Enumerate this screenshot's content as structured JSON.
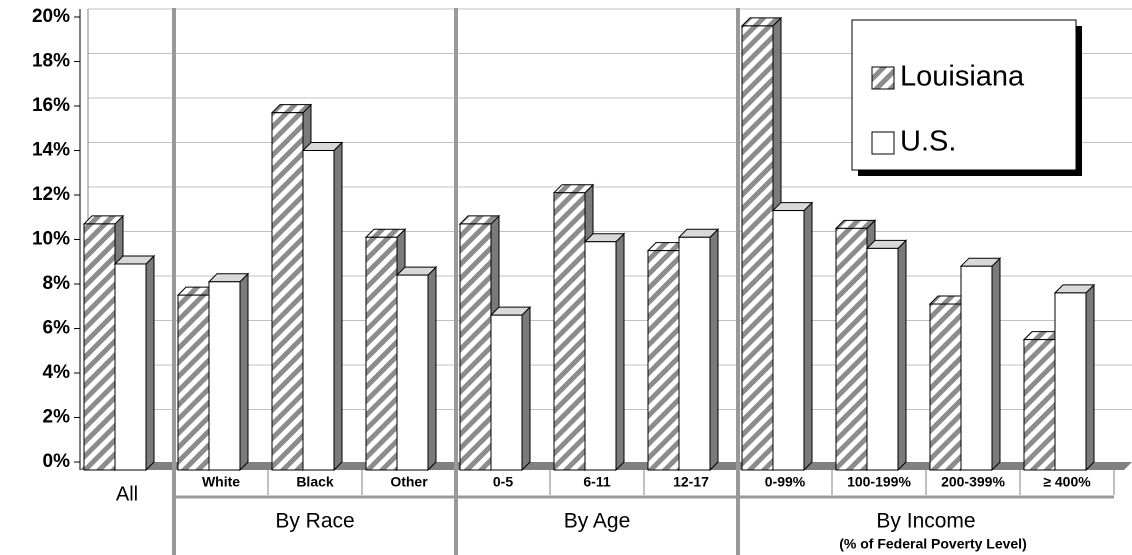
{
  "chart_data": {
    "type": "bar3d",
    "categories": [
      "All",
      "White",
      "Black",
      "Other",
      "0-5",
      "6-11",
      "12-17",
      "0-99%",
      "100-199%",
      "200-399%",
      "≥ 400%"
    ],
    "series": [
      {
        "name": "Louisiana",
        "color": "#8c8c8c",
        "values": [
          10.7,
          7.5,
          15.7,
          10.1,
          10.7,
          12.1,
          9.5,
          19.6,
          10.5,
          7.1,
          5.5
        ]
      },
      {
        "name": "U.S.",
        "color": "#ffffff",
        "values": [
          8.9,
          8.1,
          14.0,
          8.4,
          6.6,
          9.9,
          10.1,
          11.3,
          9.6,
          8.8,
          7.6
        ]
      }
    ],
    "group_labels": [
      "By Race",
      "By Age",
      "By Income"
    ],
    "group_note": "(% of Federal Poverty Level)",
    "ylim": [
      0,
      20
    ],
    "yticks": [
      {
        "value": 0,
        "label": "0%"
      },
      {
        "value": 2,
        "label": "2%"
      },
      {
        "value": 4,
        "label": "4%"
      },
      {
        "value": 6,
        "label": "6%"
      },
      {
        "value": 8,
        "label": "8%"
      },
      {
        "value": 10,
        "label": "10%"
      },
      {
        "value": 12,
        "label": "12%"
      },
      {
        "value": 14,
        "label": "14%"
      },
      {
        "value": 16,
        "label": "16%"
      },
      {
        "value": 18,
        "label": "18%"
      },
      {
        "value": 20,
        "label": "20%"
      }
    ],
    "grid": true,
    "legend": "top-right"
  }
}
